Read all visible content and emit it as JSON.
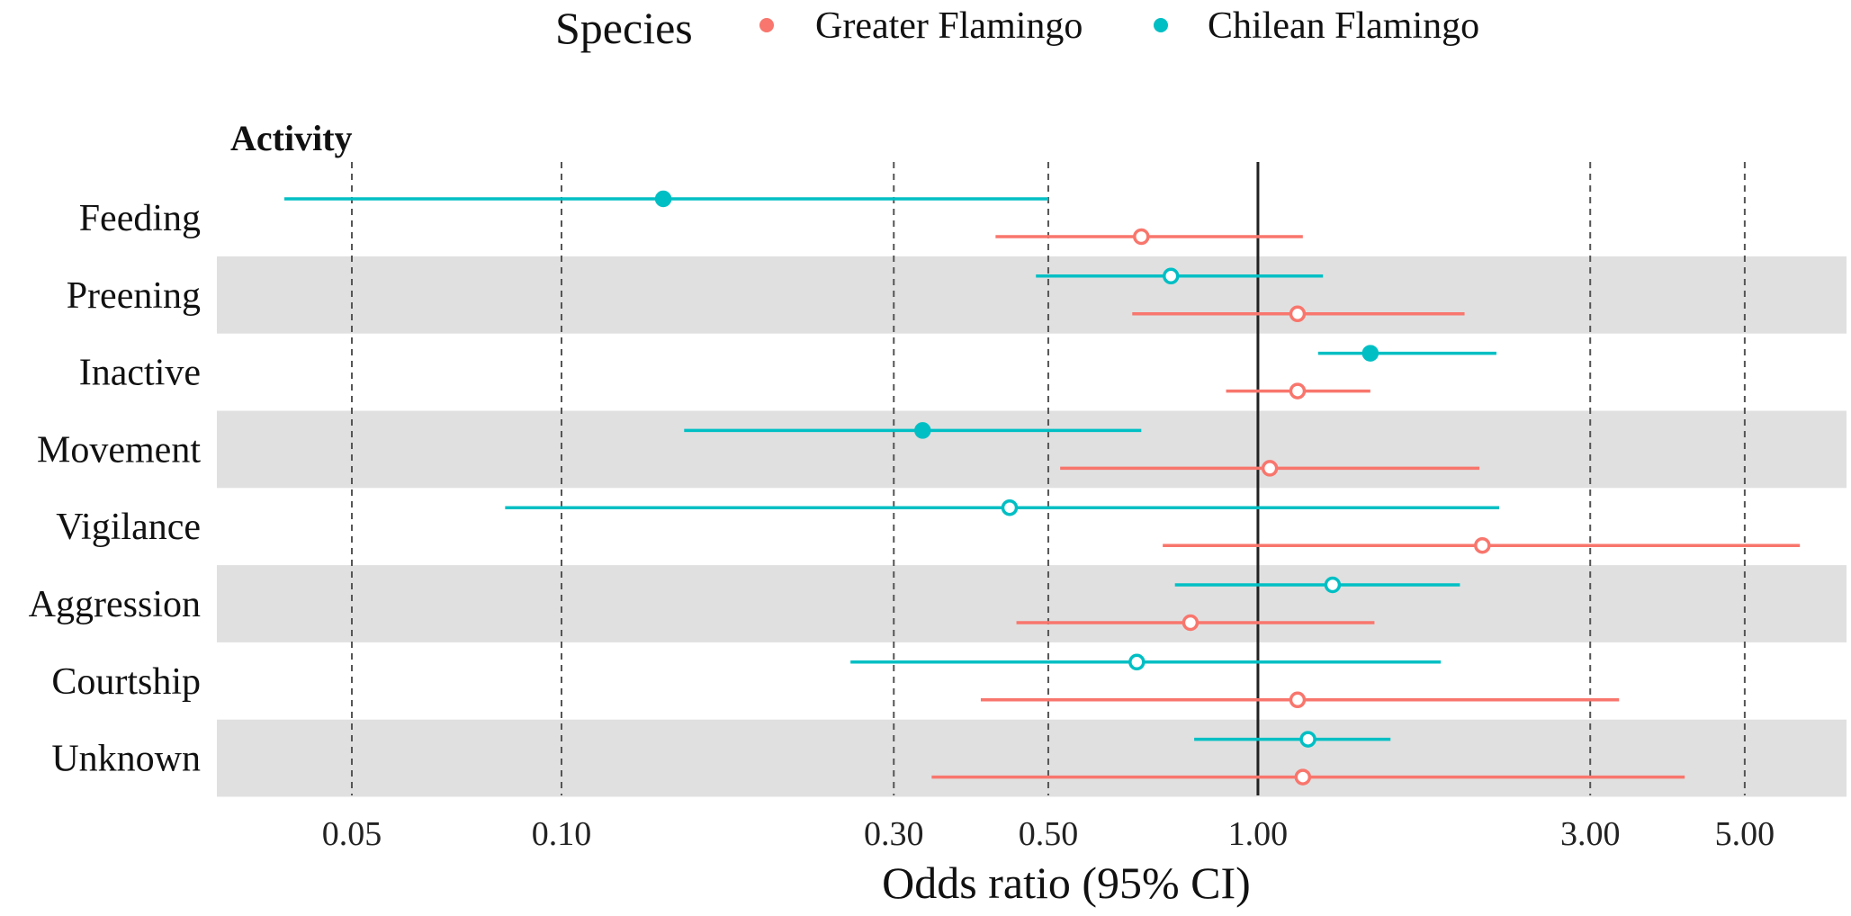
{
  "chart_data": {
    "type": "forest",
    "xlabel": "Odds ratio (95% CI)",
    "panel_label": "Activity",
    "xscale": "log",
    "xlim": [
      0.032,
      7.0
    ],
    "xticks": [
      0.05,
      0.1,
      0.3,
      0.5,
      1.0,
      3.0,
      5.0
    ],
    "xtick_labels": [
      "0.05",
      "0.10",
      "0.30",
      "0.50",
      "1.00",
      "3.00",
      "5.00"
    ],
    "reference_line": 1.0,
    "legend": {
      "title": "Species",
      "position": "top",
      "entries": [
        {
          "name": "Greater Flamingo",
          "color": "#F8766D"
        },
        {
          "name": "Chilean Flamingo",
          "color": "#00BFC4"
        }
      ]
    },
    "categories": [
      "Feeding",
      "Preening",
      "Inactive",
      "Movement",
      "Vigilance",
      "Aggression",
      "Courtship",
      "Unknown"
    ],
    "series": [
      {
        "name": "Chilean Flamingo",
        "color": "#00BFC4",
        "estimates": [
          0.14,
          0.75,
          1.45,
          0.33,
          0.44,
          1.28,
          0.67,
          1.18
        ],
        "lower": [
          0.04,
          0.48,
          1.22,
          0.15,
          0.083,
          0.76,
          0.26,
          0.81
        ],
        "upper": [
          0.5,
          1.24,
          2.2,
          0.68,
          2.22,
          1.95,
          1.83,
          1.55
        ],
        "significant": [
          true,
          false,
          true,
          true,
          false,
          false,
          false,
          false
        ]
      },
      {
        "name": "Greater Flamingo",
        "color": "#F8766D",
        "estimates": [
          0.68,
          1.14,
          1.14,
          1.04,
          2.1,
          0.8,
          1.14,
          1.16
        ],
        "lower": [
          0.42,
          0.66,
          0.9,
          0.52,
          0.73,
          0.45,
          0.4,
          0.34
        ],
        "upper": [
          1.16,
          1.98,
          1.45,
          2.08,
          6.0,
          1.47,
          3.3,
          4.1
        ],
        "significant": [
          false,
          false,
          false,
          false,
          false,
          false,
          false,
          false
        ]
      }
    ]
  }
}
